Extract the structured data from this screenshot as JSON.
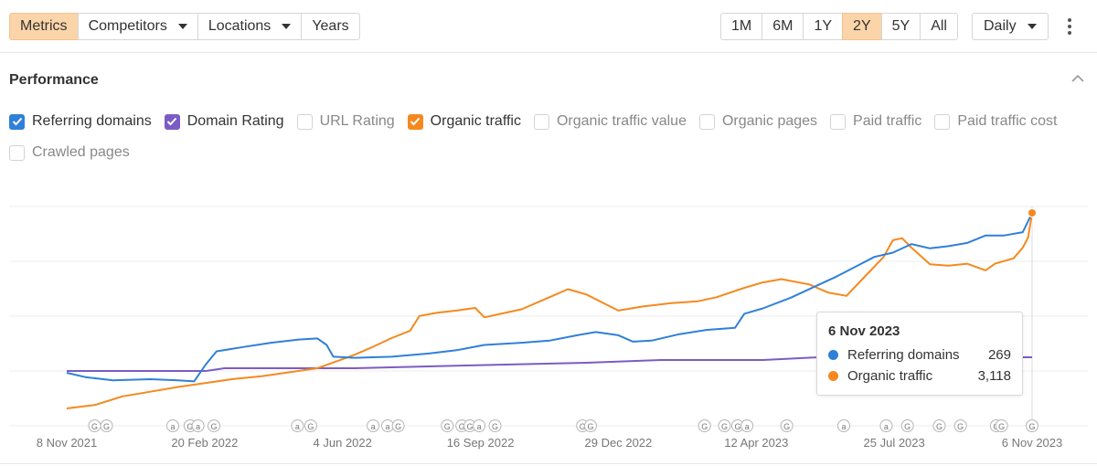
{
  "toolbar": {
    "left_tabs": [
      {
        "label": "Metrics",
        "active": true,
        "caret": false
      },
      {
        "label": "Competitors",
        "active": false,
        "caret": true
      },
      {
        "label": "Locations",
        "active": false,
        "caret": true
      },
      {
        "label": "Years",
        "active": false,
        "caret": false
      }
    ],
    "range_buttons": [
      {
        "label": "1M",
        "active": false
      },
      {
        "label": "6M",
        "active": false
      },
      {
        "label": "1Y",
        "active": false
      },
      {
        "label": "2Y",
        "active": true
      },
      {
        "label": "5Y",
        "active": false
      },
      {
        "label": "All",
        "active": false
      }
    ],
    "interval_label": "Daily",
    "menu_icon": "kebab-menu-icon"
  },
  "section": {
    "title": "Performance",
    "collapse_icon": "chevron-up-icon"
  },
  "metrics": [
    {
      "label": "Referring domains",
      "checked": true,
      "color": "#2f80d8"
    },
    {
      "label": "Domain Rating",
      "checked": true,
      "color": "#7b5cc4"
    },
    {
      "label": "URL Rating",
      "checked": false,
      "color": ""
    },
    {
      "label": "Organic traffic",
      "checked": true,
      "color": "#f5891f"
    },
    {
      "label": "Organic traffic value",
      "checked": false,
      "color": ""
    },
    {
      "label": "Organic pages",
      "checked": false,
      "color": ""
    },
    {
      "label": "Paid traffic",
      "checked": false,
      "color": ""
    },
    {
      "label": "Paid traffic cost",
      "checked": false,
      "color": ""
    },
    {
      "label": "Crawled pages",
      "checked": false,
      "color": ""
    }
  ],
  "tooltip": {
    "date": "6 Nov 2023",
    "rows": [
      {
        "name": "Referring domains",
        "value": "269",
        "color": "#2f80d8"
      },
      {
        "name": "Organic traffic",
        "value": "3,118",
        "color": "#f5891f"
      }
    ]
  },
  "chart_data": {
    "type": "line",
    "x_start": "2021-11-08",
    "x_end": "2023-11-06",
    "x_tick_labels": [
      "8 Nov 2021",
      "20 Feb 2022",
      "4 Jun 2022",
      "16 Sep 2022",
      "29 Dec 2022",
      "12 Apr 2023",
      "25 Jul 2023",
      "6 Nov 2023"
    ],
    "y_scale": "independent per series, unlabeled",
    "grid": true,
    "series": [
      {
        "name": "Referring domains",
        "color": "#2f80d8",
        "points": [
          [
            "2021-11-08",
            120
          ],
          [
            "2021-11-22",
            116
          ],
          [
            "2021-12-13",
            113
          ],
          [
            "2022-01-10",
            114
          ],
          [
            "2022-01-31",
            113
          ],
          [
            "2022-02-12",
            112
          ],
          [
            "2022-02-21",
            128
          ],
          [
            "2022-03-01",
            140
          ],
          [
            "2022-03-21",
            144
          ],
          [
            "2022-04-11",
            148
          ],
          [
            "2022-05-02",
            151
          ],
          [
            "2022-05-16",
            152
          ],
          [
            "2022-05-23",
            146
          ],
          [
            "2022-05-28",
            135
          ],
          [
            "2022-06-13",
            134
          ],
          [
            "2022-07-11",
            135
          ],
          [
            "2022-08-08",
            138
          ],
          [
            "2022-08-29",
            141
          ],
          [
            "2022-09-19",
            146
          ],
          [
            "2022-10-17",
            148
          ],
          [
            "2022-11-07",
            150
          ],
          [
            "2022-11-28",
            155
          ],
          [
            "2022-12-12",
            158
          ],
          [
            "2022-12-29",
            155
          ],
          [
            "2023-01-09",
            149
          ],
          [
            "2023-01-23",
            150
          ],
          [
            "2023-02-13",
            156
          ],
          [
            "2023-03-06",
            160
          ],
          [
            "2023-03-27",
            162
          ],
          [
            "2023-04-03",
            175
          ],
          [
            "2023-04-17",
            180
          ],
          [
            "2023-05-08",
            190
          ],
          [
            "2023-05-29",
            202
          ],
          [
            "2023-06-12",
            210
          ],
          [
            "2023-06-26",
            219
          ],
          [
            "2023-07-10",
            228
          ],
          [
            "2023-07-24",
            232
          ],
          [
            "2023-08-07",
            240
          ],
          [
            "2023-08-21",
            236
          ],
          [
            "2023-09-04",
            238
          ],
          [
            "2023-09-18",
            241
          ],
          [
            "2023-10-02",
            248
          ],
          [
            "2023-10-16",
            248
          ],
          [
            "2023-10-30",
            251
          ],
          [
            "2023-11-06",
            269
          ]
        ]
      },
      {
        "name": "Domain Rating",
        "color": "#7b5cc4",
        "points": [
          [
            "2021-11-08",
            29
          ],
          [
            "2022-01-24",
            29
          ],
          [
            "2022-02-21",
            29
          ],
          [
            "2022-03-07",
            30
          ],
          [
            "2022-06-13",
            30
          ],
          [
            "2022-09-05",
            31
          ],
          [
            "2022-12-05",
            32
          ],
          [
            "2023-01-30",
            33
          ],
          [
            "2023-04-17",
            33
          ],
          [
            "2023-05-29",
            34
          ],
          [
            "2023-11-06",
            34
          ]
        ]
      },
      {
        "name": "Organic traffic",
        "color": "#f5891f",
        "points": [
          [
            "2021-11-08",
            200
          ],
          [
            "2021-11-29",
            250
          ],
          [
            "2021-12-20",
            380
          ],
          [
            "2022-01-10",
            450
          ],
          [
            "2022-01-31",
            520
          ],
          [
            "2022-02-21",
            580
          ],
          [
            "2022-03-14",
            640
          ],
          [
            "2022-04-04",
            680
          ],
          [
            "2022-04-25",
            740
          ],
          [
            "2022-05-16",
            800
          ],
          [
            "2022-05-30",
            900
          ],
          [
            "2022-06-13",
            1000
          ],
          [
            "2022-06-27",
            1120
          ],
          [
            "2022-07-11",
            1250
          ],
          [
            "2022-07-25",
            1360
          ],
          [
            "2022-08-01",
            1580
          ],
          [
            "2022-08-15",
            1630
          ],
          [
            "2022-08-29",
            1660
          ],
          [
            "2022-09-12",
            1700
          ],
          [
            "2022-09-19",
            1560
          ],
          [
            "2022-10-03",
            1620
          ],
          [
            "2022-10-17",
            1680
          ],
          [
            "2022-11-07",
            1860
          ],
          [
            "2022-11-21",
            1980
          ],
          [
            "2022-12-05",
            1900
          ],
          [
            "2022-12-19",
            1760
          ],
          [
            "2022-12-29",
            1660
          ],
          [
            "2023-01-16",
            1720
          ],
          [
            "2023-02-06",
            1770
          ],
          [
            "2023-02-27",
            1800
          ],
          [
            "2023-03-13",
            1860
          ],
          [
            "2023-04-03",
            2000
          ],
          [
            "2023-04-17",
            2080
          ],
          [
            "2023-05-01",
            2130
          ],
          [
            "2023-05-22",
            2050
          ],
          [
            "2023-06-05",
            1930
          ],
          [
            "2023-06-19",
            1880
          ],
          [
            "2023-07-03",
            2170
          ],
          [
            "2023-07-17",
            2460
          ],
          [
            "2023-07-24",
            2710
          ],
          [
            "2023-07-31",
            2740
          ],
          [
            "2023-08-07",
            2600
          ],
          [
            "2023-08-21",
            2350
          ],
          [
            "2023-09-04",
            2330
          ],
          [
            "2023-09-18",
            2360
          ],
          [
            "2023-10-02",
            2260
          ],
          [
            "2023-10-09",
            2360
          ],
          [
            "2023-10-23",
            2440
          ],
          [
            "2023-10-30",
            2600
          ],
          [
            "2023-11-03",
            2750
          ],
          [
            "2023-11-06",
            3118
          ]
        ]
      }
    ],
    "event_markers": [
      {
        "date": "2021-11-29",
        "kind": "G"
      },
      {
        "date": "2021-12-08",
        "kind": "G"
      },
      {
        "date": "2022-01-27",
        "kind": "a"
      },
      {
        "date": "2022-02-09",
        "kind": "G"
      },
      {
        "date": "2022-02-15",
        "kind": "a"
      },
      {
        "date": "2022-02-27",
        "kind": "G"
      },
      {
        "date": "2022-05-01",
        "kind": "a"
      },
      {
        "date": "2022-05-11",
        "kind": "G"
      },
      {
        "date": "2022-06-27",
        "kind": "a"
      },
      {
        "date": "2022-07-08",
        "kind": "a"
      },
      {
        "date": "2022-07-16",
        "kind": "G"
      },
      {
        "date": "2022-08-22",
        "kind": "G"
      },
      {
        "date": "2022-09-02",
        "kind": "G"
      },
      {
        "date": "2022-09-08",
        "kind": "G"
      },
      {
        "date": "2022-09-15",
        "kind": "a"
      },
      {
        "date": "2022-09-27",
        "kind": "G"
      },
      {
        "date": "2022-12-02",
        "kind": "G"
      },
      {
        "date": "2022-12-08",
        "kind": "G"
      },
      {
        "date": "2023-03-04",
        "kind": "G"
      },
      {
        "date": "2023-03-19",
        "kind": "G"
      },
      {
        "date": "2023-03-29",
        "kind": "G"
      },
      {
        "date": "2023-04-05",
        "kind": "a"
      },
      {
        "date": "2023-05-05",
        "kind": "G"
      },
      {
        "date": "2023-06-17",
        "kind": "a"
      },
      {
        "date": "2023-07-19",
        "kind": "a"
      },
      {
        "date": "2023-08-04",
        "kind": "G"
      },
      {
        "date": "2023-08-28",
        "kind": "G"
      },
      {
        "date": "2023-09-13",
        "kind": "G"
      },
      {
        "date": "2023-10-10",
        "kind": "G"
      },
      {
        "date": "2023-10-14",
        "kind": "G"
      },
      {
        "date": "2023-11-06",
        "kind": "G"
      }
    ]
  }
}
